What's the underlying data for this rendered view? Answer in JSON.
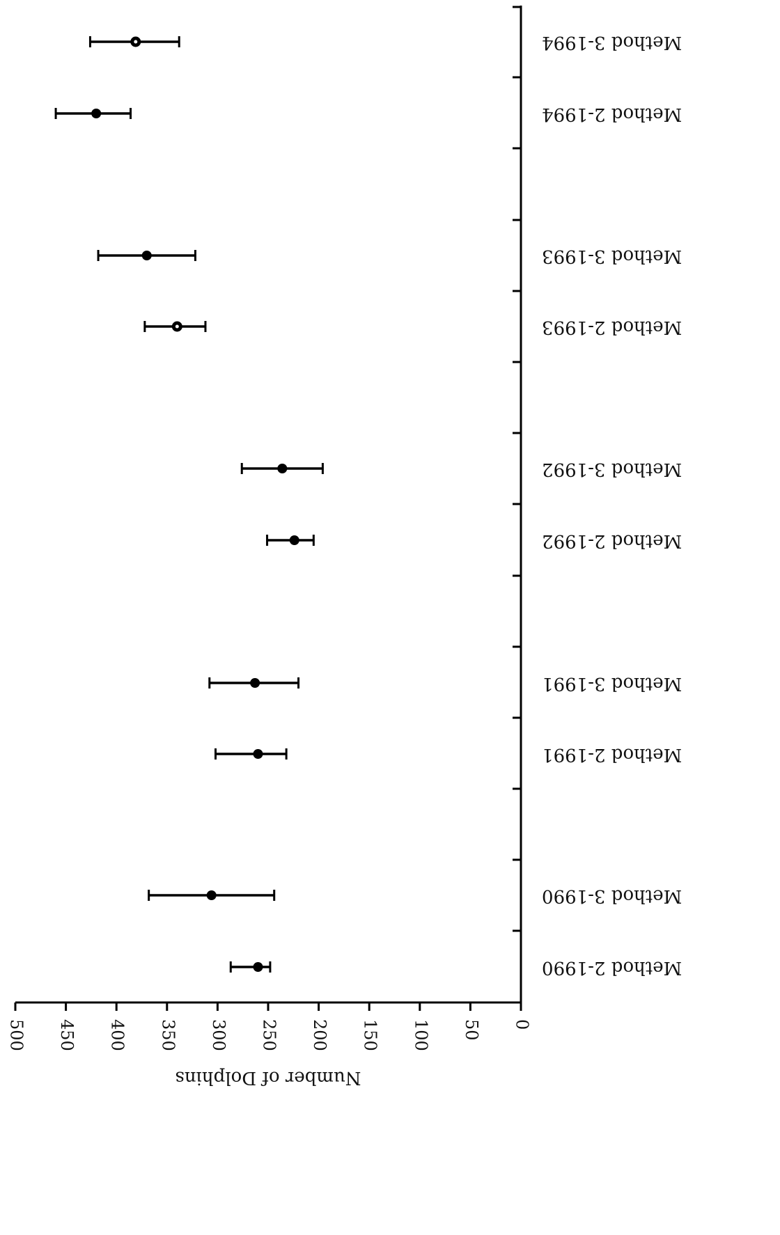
{
  "chart_data": {
    "type": "scatter",
    "orientation": "rotated-180",
    "ylabel": "Number of Dolphins",
    "xlabel": "",
    "ylim": [
      0,
      500
    ],
    "yticks": [
      0,
      50,
      100,
      150,
      200,
      250,
      300,
      350,
      400,
      450,
      500
    ],
    "categories": [
      "Method 2-1990",
      "Method 3-1990",
      "Method 2-1991",
      "Method 3-1991",
      "Method 2-1992",
      "Method 3-1992",
      "Method 2-1993",
      "Method 3-1993",
      "Method 2-1994",
      "Method 3-1994"
    ],
    "points": [
      {
        "category": "Method 2-1990",
        "value": 260,
        "low": 248,
        "high": 287,
        "marker": "filled"
      },
      {
        "category": "Method 3-1990",
        "value": 306,
        "low": 244,
        "high": 368,
        "marker": "filled"
      },
      {
        "category": "Method 2-1991",
        "value": 260,
        "low": 232,
        "high": 302,
        "marker": "filled"
      },
      {
        "category": "Method 3-1991",
        "value": 263,
        "low": 220,
        "high": 308,
        "marker": "filled"
      },
      {
        "category": "Method 2-1992",
        "value": 224,
        "low": 205,
        "high": 251,
        "marker": "filled"
      },
      {
        "category": "Method 3-1992",
        "value": 236,
        "low": 196,
        "high": 276,
        "marker": "filled"
      },
      {
        "category": "Method 2-1993",
        "value": 340,
        "low": 312,
        "high": 372,
        "marker": "open"
      },
      {
        "category": "Method 3-1993",
        "value": 370,
        "low": 322,
        "high": 418,
        "marker": "filled"
      },
      {
        "category": "Method 2-1994",
        "value": 420,
        "low": 386,
        "high": 460,
        "marker": "filled"
      },
      {
        "category": "Method 3-1994",
        "value": 381,
        "low": 338,
        "high": 426,
        "marker": "open"
      }
    ],
    "grid": false,
    "legend": "none"
  }
}
